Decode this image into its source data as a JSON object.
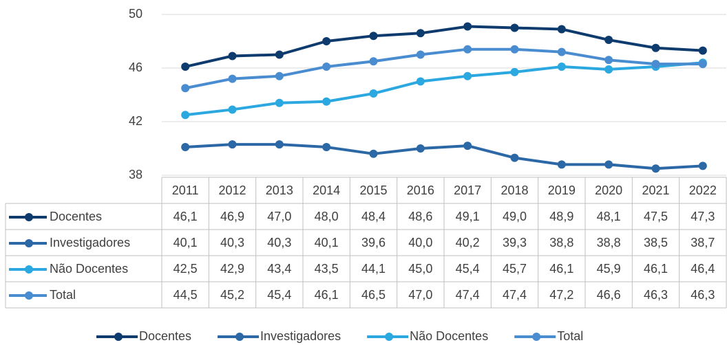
{
  "chart_data": {
    "type": "line",
    "categories": [
      "2011",
      "2012",
      "2013",
      "2014",
      "2015",
      "2016",
      "2017",
      "2018",
      "2019",
      "2020",
      "2021",
      "2022"
    ],
    "ylim": [
      38,
      50
    ],
    "yticks": [
      38,
      42,
      46,
      50
    ],
    "grid": true,
    "legend": "bottom",
    "series": [
      {
        "name": "Docentes",
        "color": "#0d3b6e",
        "values": [
          46.1,
          46.9,
          47.0,
          48.0,
          48.4,
          48.6,
          49.1,
          49.0,
          48.9,
          48.1,
          47.5,
          47.3
        ],
        "value_labels": [
          "46,1",
          "46,9",
          "47,0",
          "48,0",
          "48,4",
          "48,6",
          "49,1",
          "49,0",
          "48,9",
          "48,1",
          "47,5",
          "47,3"
        ]
      },
      {
        "name": "Investigadores",
        "color": "#2c68a6",
        "values": [
          40.1,
          40.3,
          40.3,
          40.1,
          39.6,
          40.0,
          40.2,
          39.3,
          38.8,
          38.8,
          38.5,
          38.7
        ],
        "value_labels": [
          "40,1",
          "40,3",
          "40,3",
          "40,1",
          "39,6",
          "40,0",
          "40,2",
          "39,3",
          "38,8",
          "38,8",
          "38,5",
          "38,7"
        ]
      },
      {
        "name": "Não Docentes",
        "color": "#2ba8e0",
        "values": [
          42.5,
          42.9,
          43.4,
          43.5,
          44.1,
          45.0,
          45.4,
          45.7,
          46.1,
          45.9,
          46.1,
          46.4
        ],
        "value_labels": [
          "42,5",
          "42,9",
          "43,4",
          "43,5",
          "44,1",
          "45,0",
          "45,4",
          "45,7",
          "46,1",
          "45,9",
          "46,1",
          "46,4"
        ]
      },
      {
        "name": "Total",
        "color": "#4a8cd0",
        "values": [
          44.5,
          45.2,
          45.4,
          46.1,
          46.5,
          47.0,
          47.4,
          47.4,
          47.2,
          46.6,
          46.3,
          46.3
        ],
        "value_labels": [
          "44,5",
          "45,2",
          "45,4",
          "46,1",
          "46,5",
          "47,0",
          "47,4",
          "47,4",
          "47,2",
          "46,6",
          "46,3",
          "46,3"
        ]
      }
    ]
  }
}
